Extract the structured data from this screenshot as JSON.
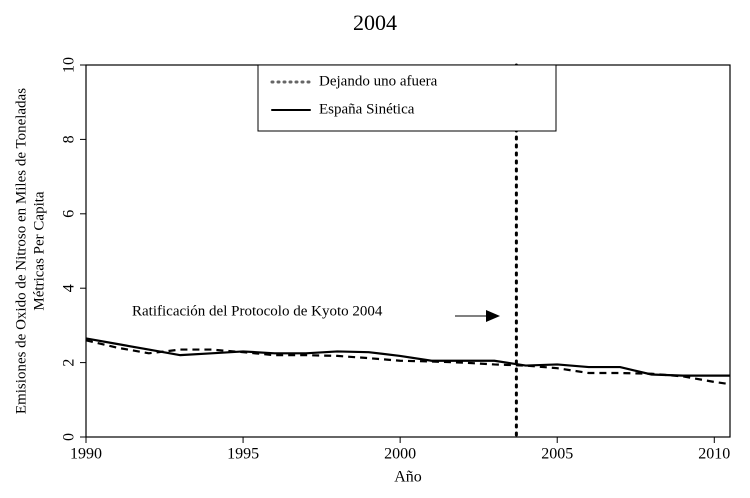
{
  "chart_data": {
    "type": "line",
    "title": "2004",
    "xlabel": "Año",
    "ylabel": [
      "Emisiones de Oxido de Nitroso en Miles de Toneladas",
      "Métricas Per Capita"
    ],
    "x": [
      1990,
      1991,
      1992,
      1993,
      1994,
      1995,
      1996,
      1997,
      1998,
      1999,
      2000,
      2001,
      2002,
      2003,
      2004,
      2005,
      2006,
      2007,
      2008,
      2009,
      2010,
      2010.5
    ],
    "series": [
      {
        "name": "Dejando uno afuera",
        "color": "#000000",
        "dash": "7,5",
        "values": [
          2.6,
          2.4,
          2.25,
          2.35,
          2.35,
          2.28,
          2.2,
          2.2,
          2.18,
          2.12,
          2.05,
          2.03,
          2.0,
          1.95,
          1.92,
          1.85,
          1.72,
          1.72,
          1.7,
          1.63,
          1.48,
          1.42
        ]
      },
      {
        "name": "España Sinética",
        "color": "#000000",
        "dash": "none",
        "values": [
          2.65,
          2.5,
          2.35,
          2.2,
          2.25,
          2.3,
          2.25,
          2.25,
          2.3,
          2.28,
          2.18,
          2.05,
          2.05,
          2.05,
          1.92,
          1.95,
          1.88,
          1.88,
          1.68,
          1.65,
          1.65,
          1.65
        ]
      }
    ],
    "xlim": [
      1990,
      2010.5
    ],
    "xticks": [
      1990,
      1995,
      2000,
      2005,
      2010
    ],
    "ylim": [
      0,
      10
    ],
    "yticks": [
      0,
      2,
      4,
      6,
      8,
      10
    ],
    "vline": 2003.7,
    "annotation": "Ratificación del Protocolo de Kyoto 2004"
  }
}
